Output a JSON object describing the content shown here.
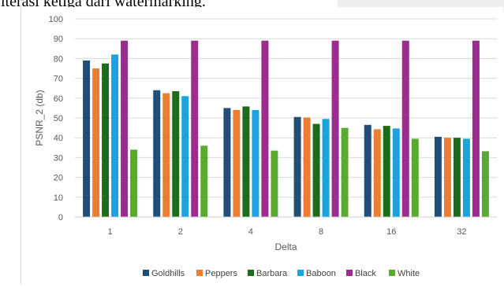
{
  "page": {
    "caption_fragment": "iterasi ketiga dari watermarking."
  },
  "chart_data": {
    "type": "bar",
    "title": "",
    "xlabel": "Delta",
    "ylabel": "PSNR_2 (db)",
    "ylim": [
      0,
      100
    ],
    "yticks": [
      0,
      10,
      20,
      30,
      40,
      50,
      60,
      70,
      80,
      90,
      100
    ],
    "grid": true,
    "legend_position": "bottom",
    "categories": [
      "1",
      "2",
      "4",
      "8",
      "16",
      "32"
    ],
    "series": [
      {
        "name": "Goldhills",
        "color": "#1f4e79",
        "values": [
          79,
          64,
          55,
          50.5,
          46.5,
          40.5
        ]
      },
      {
        "name": "Peppers",
        "color": "#ed7d31",
        "values": [
          75,
          62.5,
          54,
          50.2,
          44.3,
          40
        ]
      },
      {
        "name": "Barbara",
        "color": "#1e6b1e",
        "values": [
          77.5,
          63.5,
          55.8,
          47,
          46,
          40
        ]
      },
      {
        "name": "Baboon",
        "color": "#1aa3e0",
        "values": [
          82,
          61,
          54,
          49.5,
          44.7,
          39.5
        ]
      },
      {
        "name": "Black",
        "color": "#9b2d8f",
        "values": [
          89,
          89,
          89,
          89,
          89,
          89
        ]
      },
      {
        "name": "White",
        "color": "#5aaa32",
        "values": [
          34,
          36,
          33.5,
          45,
          39.5,
          33.2
        ]
      }
    ]
  }
}
